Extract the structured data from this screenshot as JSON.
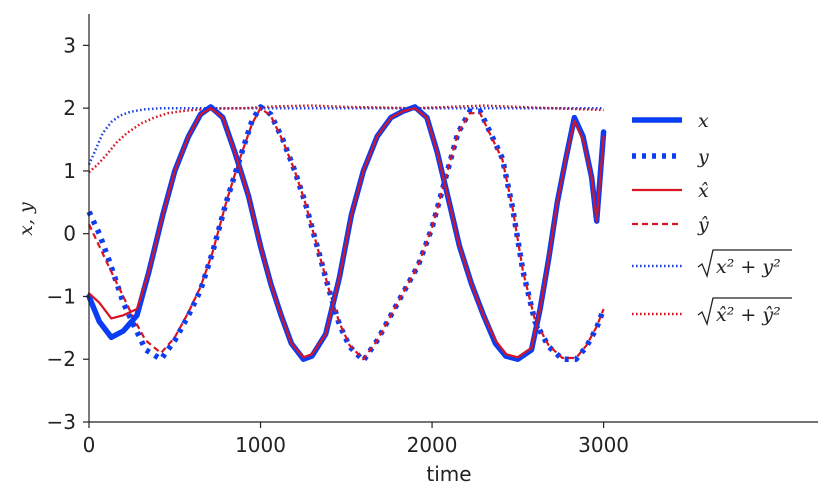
{
  "chart_data": {
    "type": "line",
    "xlabel": "time",
    "ylabel": "x, y",
    "xlim": [
      0,
      4250
    ],
    "ylim": [
      -3,
      3.5
    ],
    "xticks": [
      0,
      1000,
      2000,
      3000
    ],
    "yticks": [
      -3,
      -2,
      -1,
      0,
      1,
      2,
      3
    ],
    "xtick_labels": [
      "0",
      "1000",
      "2000",
      "3000"
    ],
    "ytick_labels": [
      "−3",
      "−2",
      "−1",
      "0",
      "1",
      "2",
      "3"
    ],
    "legend_position": "right",
    "series": [
      {
        "name": "x",
        "legend_label": "x",
        "color": "#0b3df5",
        "style": "solid-thick",
        "points": [
          [
            0,
            -1.0
          ],
          [
            60,
            -1.4
          ],
          [
            130,
            -1.65
          ],
          [
            200,
            -1.55
          ],
          [
            280,
            -1.3
          ],
          [
            350,
            -0.6
          ],
          [
            430,
            0.3
          ],
          [
            500,
            1.0
          ],
          [
            580,
            1.55
          ],
          [
            650,
            1.9
          ],
          [
            710,
            2.02
          ],
          [
            780,
            1.85
          ],
          [
            850,
            1.3
          ],
          [
            930,
            0.6
          ],
          [
            1000,
            -0.2
          ],
          [
            1060,
            -0.8
          ],
          [
            1120,
            -1.3
          ],
          [
            1180,
            -1.75
          ],
          [
            1250,
            -2.0
          ],
          [
            1300,
            -1.95
          ],
          [
            1380,
            -1.6
          ],
          [
            1460,
            -0.7
          ],
          [
            1530,
            0.3
          ],
          [
            1600,
            1.0
          ],
          [
            1680,
            1.55
          ],
          [
            1760,
            1.85
          ],
          [
            1830,
            1.95
          ],
          [
            1900,
            2.02
          ],
          [
            1970,
            1.85
          ],
          [
            2030,
            1.3
          ],
          [
            2100,
            0.5
          ],
          [
            2160,
            -0.2
          ],
          [
            2230,
            -0.8
          ],
          [
            2300,
            -1.3
          ],
          [
            2370,
            -1.75
          ],
          [
            2430,
            -1.95
          ],
          [
            2500,
            -2.0
          ],
          [
            2580,
            -1.85
          ],
          [
            2630,
            -1.2
          ],
          [
            2680,
            -0.4
          ],
          [
            2730,
            0.5
          ],
          [
            2780,
            1.2
          ],
          [
            2830,
            1.85
          ],
          [
            2880,
            1.55
          ],
          [
            2930,
            0.9
          ],
          [
            2960,
            0.2
          ],
          [
            3000,
            1.62
          ]
        ]
      },
      {
        "name": "y",
        "legend_label": "y",
        "color": "#0b3df5",
        "style": "dotted-thick",
        "points": [
          [
            0,
            0.35
          ],
          [
            60,
            0.0
          ],
          [
            120,
            -0.45
          ],
          [
            200,
            -1.1
          ],
          [
            260,
            -1.45
          ],
          [
            330,
            -1.85
          ],
          [
            420,
            -2.0
          ],
          [
            500,
            -1.7
          ],
          [
            580,
            -1.3
          ],
          [
            650,
            -0.9
          ],
          [
            720,
            -0.3
          ],
          [
            800,
            0.5
          ],
          [
            880,
            1.2
          ],
          [
            950,
            1.8
          ],
          [
            1000,
            2.02
          ],
          [
            1060,
            1.9
          ],
          [
            1130,
            1.5
          ],
          [
            1200,
            1.0
          ],
          [
            1260,
            0.5
          ],
          [
            1330,
            -0.2
          ],
          [
            1400,
            -0.9
          ],
          [
            1460,
            -1.45
          ],
          [
            1520,
            -1.8
          ],
          [
            1600,
            -2.02
          ],
          [
            1680,
            -1.7
          ],
          [
            1760,
            -1.3
          ],
          [
            1840,
            -0.9
          ],
          [
            1920,
            -0.5
          ],
          [
            2000,
            0.1
          ],
          [
            2080,
            0.9
          ],
          [
            2150,
            1.6
          ],
          [
            2220,
            1.95
          ],
          [
            2280,
            1.95
          ],
          [
            2350,
            1.55
          ],
          [
            2410,
            1.2
          ],
          [
            2470,
            0.4
          ],
          [
            2530,
            -0.6
          ],
          [
            2600,
            -1.4
          ],
          [
            2680,
            -1.8
          ],
          [
            2760,
            -2.0
          ],
          [
            2840,
            -2.0
          ],
          [
            2900,
            -1.8
          ],
          [
            2960,
            -1.5
          ],
          [
            3000,
            -1.2
          ]
        ]
      },
      {
        "name": "x-hat",
        "legend_label": "x̂",
        "color": "#d81420",
        "style": "solid",
        "points": [
          [
            0,
            -0.95
          ],
          [
            60,
            -1.1
          ],
          [
            130,
            -1.35
          ],
          [
            200,
            -1.3
          ],
          [
            280,
            -1.2
          ],
          [
            350,
            -0.6
          ],
          [
            430,
            0.3
          ],
          [
            500,
            1.0
          ],
          [
            580,
            1.55
          ],
          [
            650,
            1.9
          ],
          [
            710,
            2.0
          ],
          [
            780,
            1.85
          ],
          [
            850,
            1.3
          ],
          [
            930,
            0.6
          ],
          [
            1000,
            -0.2
          ],
          [
            1060,
            -0.8
          ],
          [
            1120,
            -1.3
          ],
          [
            1180,
            -1.75
          ],
          [
            1250,
            -1.97
          ],
          [
            1300,
            -1.92
          ],
          [
            1380,
            -1.6
          ],
          [
            1460,
            -0.7
          ],
          [
            1530,
            0.3
          ],
          [
            1600,
            1.0
          ],
          [
            1680,
            1.55
          ],
          [
            1760,
            1.85
          ],
          [
            1830,
            1.95
          ],
          [
            1900,
            2.0
          ],
          [
            1970,
            1.85
          ],
          [
            2030,
            1.3
          ],
          [
            2100,
            0.5
          ],
          [
            2160,
            -0.2
          ],
          [
            2230,
            -0.8
          ],
          [
            2300,
            -1.3
          ],
          [
            2370,
            -1.7
          ],
          [
            2430,
            -1.92
          ],
          [
            2500,
            -1.97
          ],
          [
            2580,
            -1.82
          ],
          [
            2630,
            -1.2
          ],
          [
            2680,
            -0.4
          ],
          [
            2730,
            0.5
          ],
          [
            2780,
            1.2
          ],
          [
            2830,
            1.8
          ],
          [
            2880,
            1.5
          ],
          [
            2930,
            0.9
          ],
          [
            2960,
            0.2
          ],
          [
            3000,
            1.55
          ]
        ]
      },
      {
        "name": "y-hat",
        "legend_label": "ŷ",
        "color": "#d81420",
        "style": "dashed",
        "points": [
          [
            0,
            0.15
          ],
          [
            60,
            -0.2
          ],
          [
            120,
            -0.55
          ],
          [
            200,
            -1.0
          ],
          [
            260,
            -1.35
          ],
          [
            330,
            -1.7
          ],
          [
            420,
            -1.9
          ],
          [
            500,
            -1.65
          ],
          [
            580,
            -1.25
          ],
          [
            650,
            -0.85
          ],
          [
            720,
            -0.3
          ],
          [
            800,
            0.5
          ],
          [
            880,
            1.2
          ],
          [
            950,
            1.75
          ],
          [
            1000,
            2.0
          ],
          [
            1060,
            1.88
          ],
          [
            1130,
            1.48
          ],
          [
            1200,
            1.0
          ],
          [
            1260,
            0.5
          ],
          [
            1330,
            -0.2
          ],
          [
            1400,
            -0.9
          ],
          [
            1460,
            -1.42
          ],
          [
            1520,
            -1.78
          ],
          [
            1600,
            -2.0
          ],
          [
            1680,
            -1.7
          ],
          [
            1760,
            -1.3
          ],
          [
            1840,
            -0.9
          ],
          [
            1920,
            -0.5
          ],
          [
            2000,
            0.1
          ],
          [
            2080,
            0.9
          ],
          [
            2150,
            1.6
          ],
          [
            2220,
            1.92
          ],
          [
            2280,
            1.92
          ],
          [
            2350,
            1.52
          ],
          [
            2410,
            1.18
          ],
          [
            2470,
            0.4
          ],
          [
            2530,
            -0.6
          ],
          [
            2600,
            -1.38
          ],
          [
            2680,
            -1.78
          ],
          [
            2760,
            -1.98
          ],
          [
            2840,
            -1.98
          ],
          [
            2900,
            -1.78
          ],
          [
            2960,
            -1.48
          ],
          [
            3000,
            -1.2
          ]
        ]
      },
      {
        "name": "magnitude",
        "legend_label": "√(x² + y²)",
        "legend_radicand": "x² + y²",
        "color": "#1f44e0",
        "style": "dotted",
        "points": [
          [
            0,
            1.1
          ],
          [
            40,
            1.35
          ],
          [
            80,
            1.6
          ],
          [
            130,
            1.78
          ],
          [
            180,
            1.88
          ],
          [
            240,
            1.94
          ],
          [
            320,
            1.98
          ],
          [
            420,
            2.0
          ],
          [
            600,
            2.0
          ],
          [
            1000,
            2.0
          ],
          [
            1500,
            2.0
          ],
          [
            2000,
            2.0
          ],
          [
            2500,
            2.0
          ],
          [
            3000,
            2.0
          ]
        ]
      },
      {
        "name": "magnitude-hat",
        "legend_label": "√(x̂² + ŷ²)",
        "legend_radicand": "x̂² + ŷ²",
        "color": "#d81420",
        "style": "dotted",
        "points": [
          [
            0,
            0.98
          ],
          [
            50,
            1.1
          ],
          [
            100,
            1.25
          ],
          [
            160,
            1.45
          ],
          [
            220,
            1.6
          ],
          [
            300,
            1.75
          ],
          [
            380,
            1.85
          ],
          [
            460,
            1.92
          ],
          [
            560,
            1.96
          ],
          [
            700,
            1.99
          ],
          [
            900,
            2.0
          ],
          [
            1100,
            2.03
          ],
          [
            1300,
            2.04
          ],
          [
            1500,
            2.02
          ],
          [
            1700,
            2.01
          ],
          [
            1900,
            2.0
          ],
          [
            2100,
            2.02
          ],
          [
            2300,
            2.04
          ],
          [
            2500,
            2.02
          ],
          [
            2700,
            2.0
          ],
          [
            2900,
            1.98
          ],
          [
            3000,
            1.97
          ]
        ]
      }
    ]
  }
}
